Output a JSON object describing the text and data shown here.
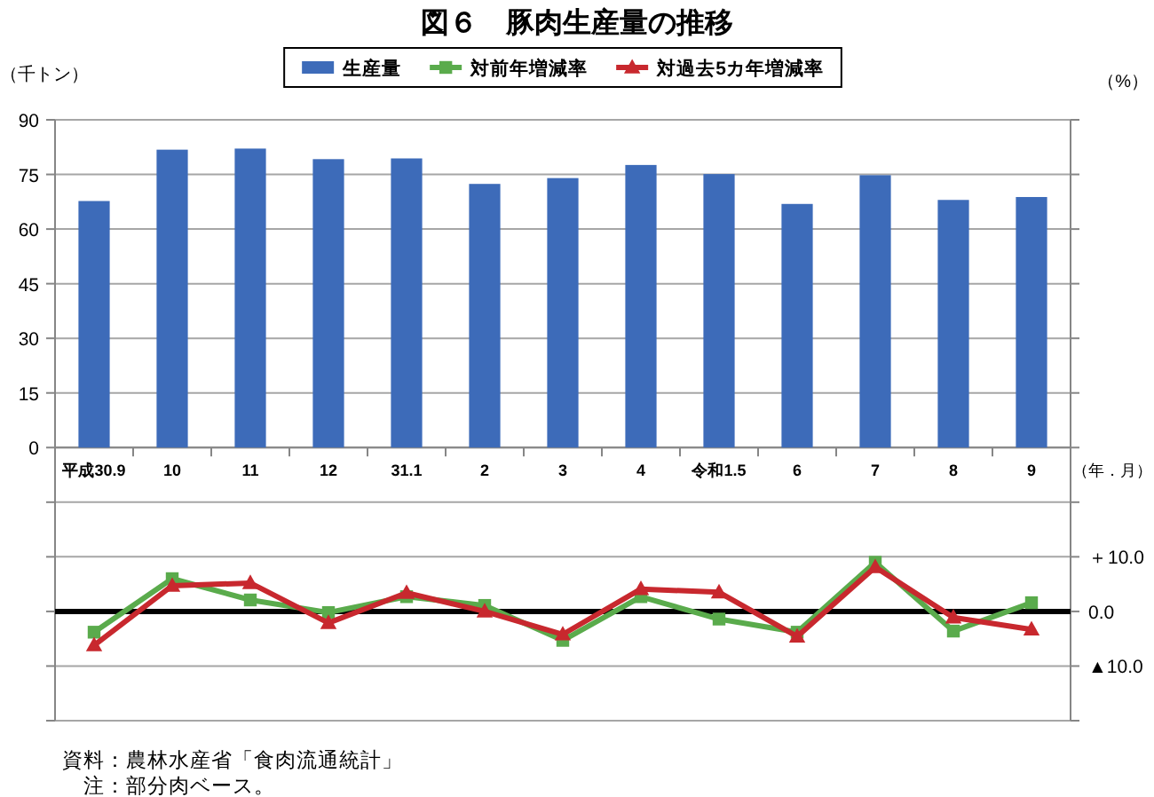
{
  "chart_data": {
    "type": "bar",
    "title": "図６　豚肉生産量の推移",
    "ylabel": "（千トン）",
    "y2label": "（%）",
    "xlabel": "（年．月）",
    "categories": [
      "平成30.9",
      "10",
      "11",
      "12",
      "31.1",
      "2",
      "3",
      "4",
      "令和1.5",
      "6",
      "7",
      "8",
      "9"
    ],
    "series": [
      {
        "name": "生産量",
        "color": "#3d6bb9",
        "values": [
          67.7,
          81.8,
          82.1,
          79.2,
          79.4,
          72.4,
          74.0,
          77.6,
          75.1,
          66.9,
          74.8,
          68.0,
          68.8
        ]
      },
      {
        "name": "対前年増減率",
        "type": "line",
        "axis": "y2",
        "color": "#5aab4c",
        "marker": "square",
        "values": [
          -3.8,
          6.0,
          2.1,
          -0.2,
          2.7,
          1.1,
          -5.3,
          2.7,
          -1.4,
          -3.8,
          9.0,
          -3.6,
          1.6
        ]
      },
      {
        "name": "対過去5カ年増減率",
        "type": "line",
        "axis": "y2",
        "color": "#c8282e",
        "marker": "triangle",
        "values": [
          -6.2,
          4.7,
          5.2,
          -2.1,
          3.4,
          0.0,
          -4.2,
          4.1,
          3.5,
          -4.6,
          8.1,
          -1.1,
          -3.3
        ]
      }
    ],
    "ylim": [
      -75,
      90
    ],
    "yticks": [
      {
        "value": -75,
        "label": null
      },
      {
        "value": -60,
        "label": null
      },
      {
        "value": -45,
        "label": null
      },
      {
        "value": -30,
        "label": null
      },
      {
        "value": -15,
        "label": null
      },
      0,
      15,
      30,
      45,
      60,
      75,
      90
    ],
    "y2lim": [
      -20,
      90
    ],
    "y2ticks": [
      {
        "value": -20,
        "label": null
      },
      {
        "value": -10,
        "label": "▲10.0"
      },
      {
        "value": 0,
        "label": "0.0"
      },
      {
        "value": 10,
        "label": "＋10.0"
      },
      {
        "value": 20,
        "label": null
      },
      {
        "value": 30,
        "label": null
      },
      {
        "value": 40,
        "label": null
      },
      {
        "value": 50,
        "label": null
      },
      {
        "value": 60,
        "label": null
      },
      {
        "value": 70,
        "label": null
      },
      {
        "value": 80,
        "label": null
      },
      {
        "value": 90,
        "label": null
      }
    ],
    "ref_lines": [
      {
        "axis": "y2",
        "value": 0,
        "color": "#000000"
      }
    ],
    "grid": "y",
    "legend": "top",
    "line_style": "solid",
    "annotations": [
      "資料：農林水産省「食肉流通統計」",
      "注：部分肉ベース。"
    ]
  }
}
